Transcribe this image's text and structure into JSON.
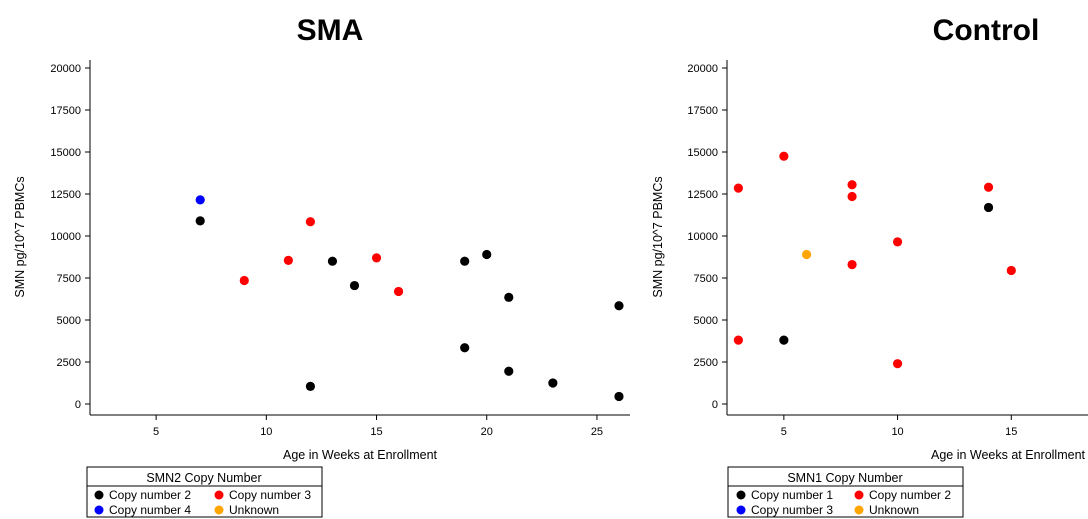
{
  "chart_data": [
    {
      "type": "scatter",
      "title": "SMA",
      "xlabel": "Age in Weeks at Enrollment",
      "ylabel": "SMN pg/10^7 PBMCs",
      "xlim": [
        2,
        26.5
      ],
      "ylim": [
        0,
        20000
      ],
      "xticks": [
        5,
        10,
        15,
        20,
        25
      ],
      "yticks": [
        0,
        2500,
        5000,
        7500,
        10000,
        12500,
        15000,
        17500,
        20000
      ],
      "legend": {
        "title": "SMN2 Copy Number",
        "entries": [
          "Copy number 2",
          "Copy number 3",
          "Copy number 4",
          "Unknown"
        ]
      },
      "series": [
        {
          "name": "Copy number 2",
          "color": "#000000",
          "points": [
            [
              7,
              10900
            ],
            [
              12,
              1050
            ],
            [
              13,
              8500
            ],
            [
              14,
              7050
            ],
            [
              19,
              8500
            ],
            [
              19,
              3350
            ],
            [
              20,
              8900
            ],
            [
              21,
              6350
            ],
            [
              21,
              1950
            ],
            [
              23,
              1250
            ],
            [
              26,
              5850
            ],
            [
              26,
              450
            ]
          ]
        },
        {
          "name": "Copy number 3",
          "color": "#ff0000",
          "points": [
            [
              9,
              7350
            ],
            [
              11,
              8550
            ],
            [
              12,
              10850
            ],
            [
              15,
              8700
            ],
            [
              16,
              6700
            ]
          ]
        },
        {
          "name": "Copy number 4",
          "color": "#0000ff",
          "points": [
            [
              7,
              12150
            ]
          ]
        },
        {
          "name": "Unknown",
          "color": "#ffa500",
          "points": []
        }
      ]
    },
    {
      "type": "scatter",
      "title": "Control",
      "xlabel": "Age in Weeks at Enrollment",
      "ylabel": "SMN pg/10^7 PBMCs",
      "xlim": [
        2.5,
        20
      ],
      "ylim": [
        0,
        20000
      ],
      "xticks": [
        5,
        10,
        15
      ],
      "yticks": [
        0,
        2500,
        5000,
        7500,
        10000,
        12500,
        15000,
        17500,
        20000
      ],
      "legend": {
        "title": "SMN1 Copy Number",
        "entries": [
          "Copy number 1",
          "Copy number 2",
          "Copy number 3",
          "Unknown"
        ]
      },
      "series": [
        {
          "name": "Copy number 1",
          "color": "#000000",
          "points": [
            [
              5,
              3800
            ],
            [
              14,
              11700
            ]
          ]
        },
        {
          "name": "Copy number 2",
          "color": "#ff0000",
          "points": [
            [
              3,
              12850
            ],
            [
              3,
              3800
            ],
            [
              5,
              14750
            ],
            [
              8,
              13050
            ],
            [
              8,
              12350
            ],
            [
              8,
              8300
            ],
            [
              10,
              9650
            ],
            [
              10,
              2400
            ],
            [
              14,
              12900
            ],
            [
              15,
              7950
            ]
          ]
        },
        {
          "name": "Copy number 3",
          "color": "#0000ff",
          "points": []
        },
        {
          "name": "Unknown",
          "color": "#ffa500",
          "points": [
            [
              6,
              8900
            ]
          ]
        }
      ]
    }
  ]
}
